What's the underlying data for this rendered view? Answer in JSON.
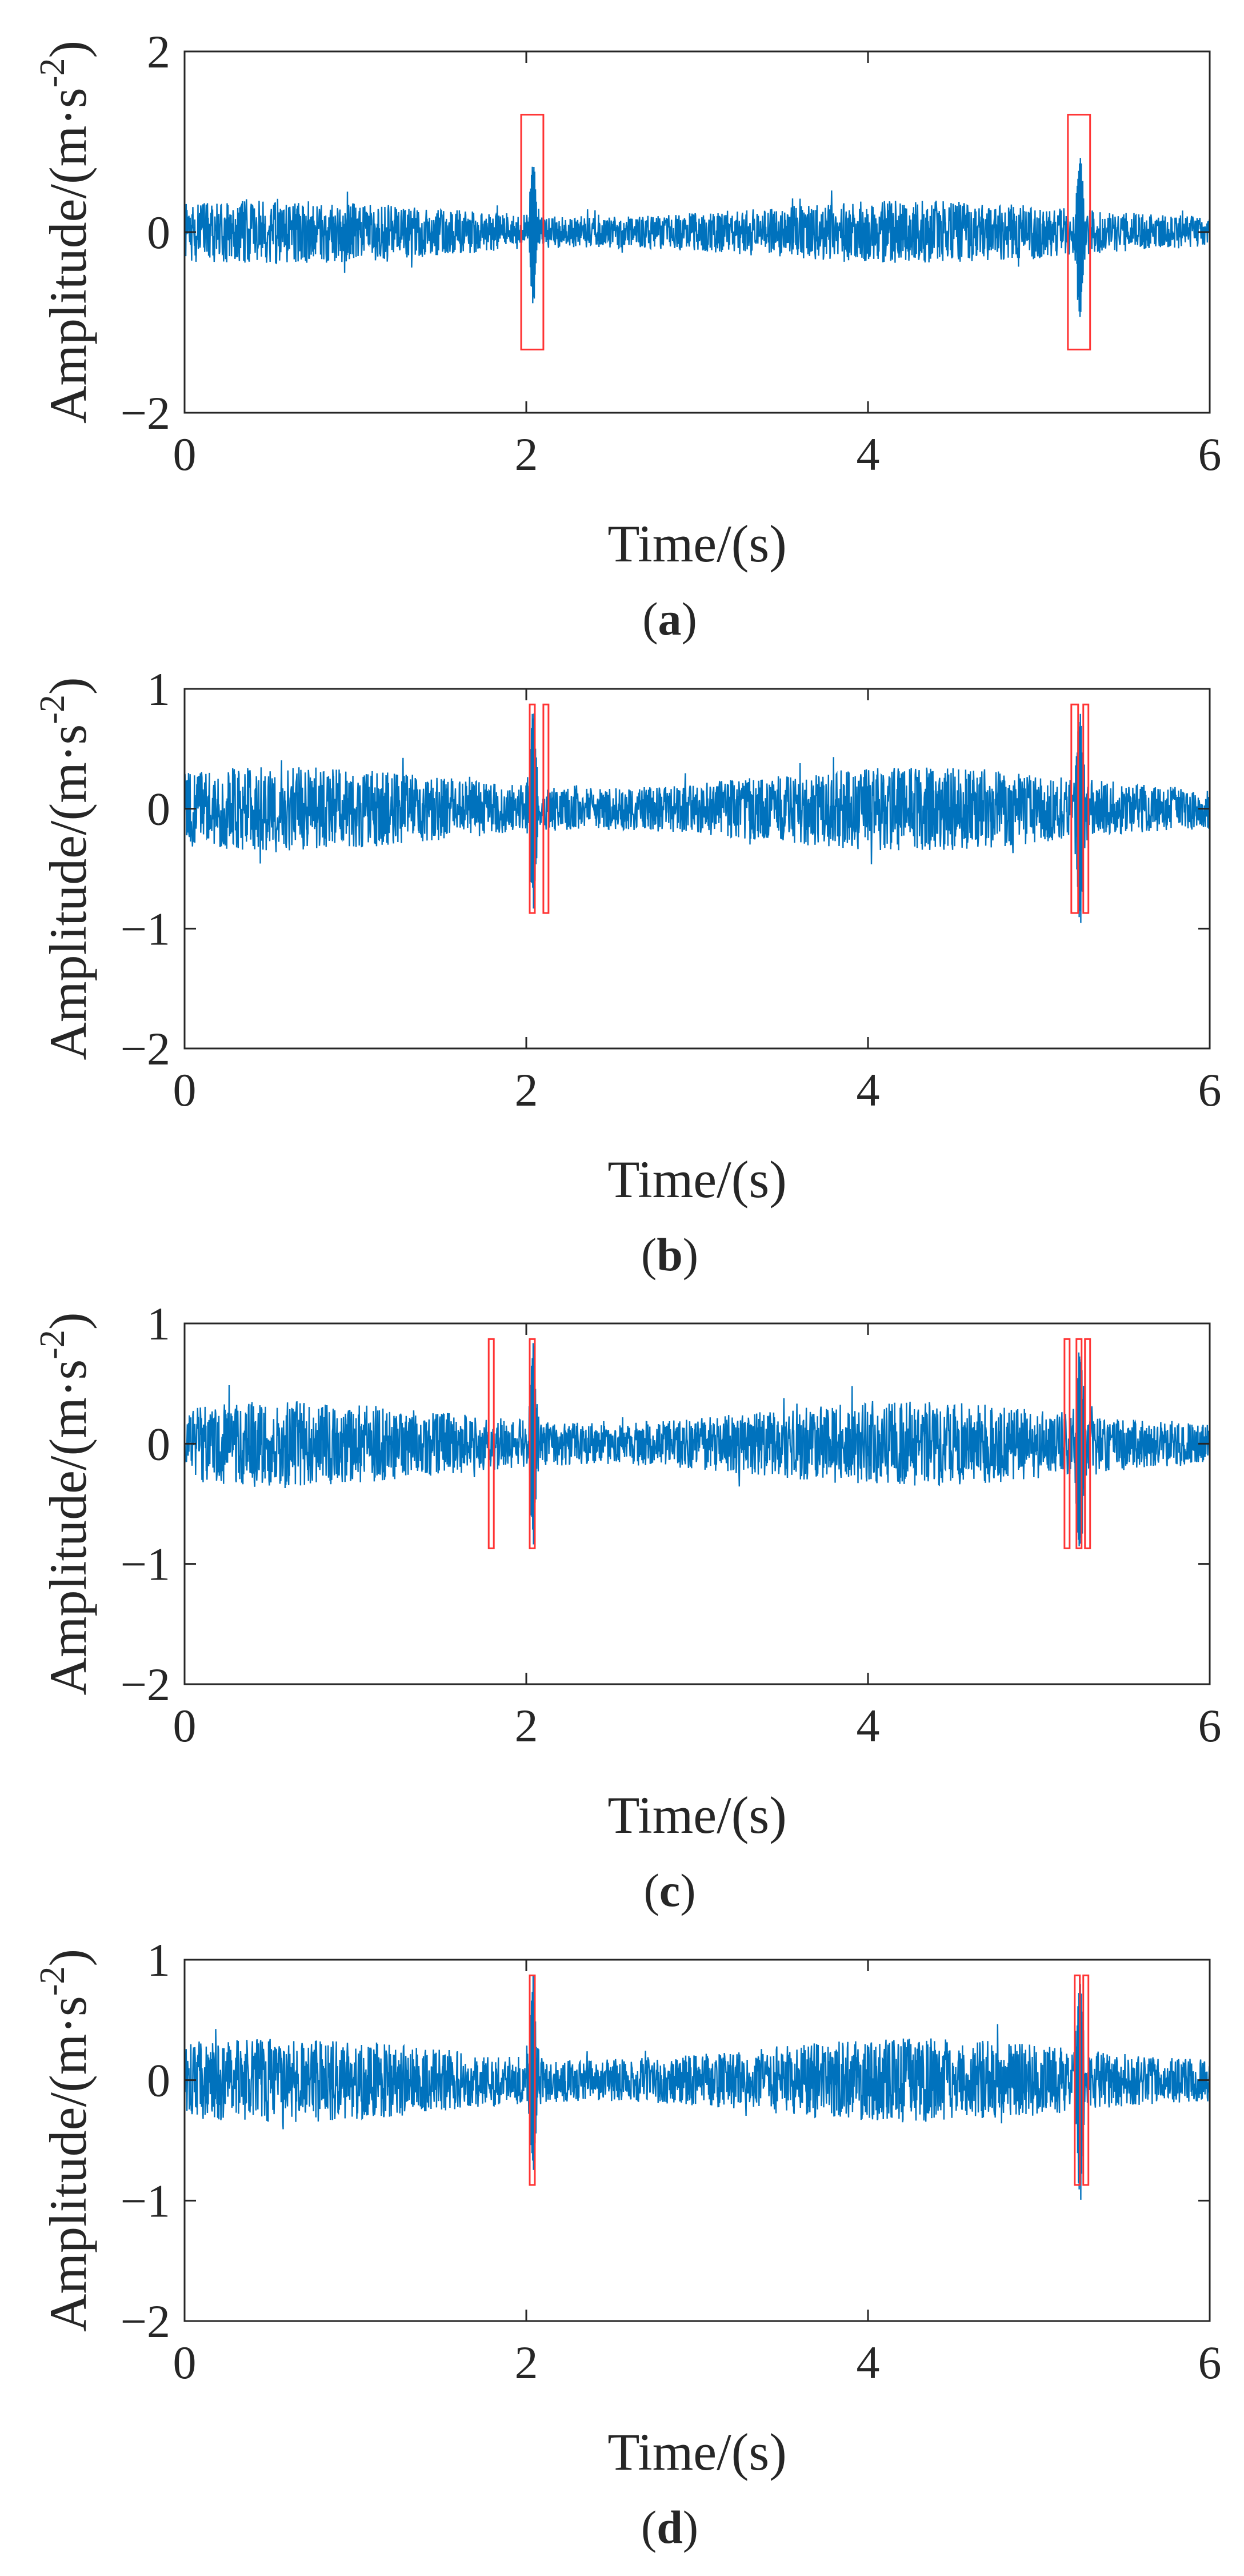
{
  "figure": {
    "signal_color": "#0072bd",
    "box_color": "#ff3333",
    "axis_color": "#262626"
  },
  "chart_data": [
    {
      "type": "line",
      "panel_label": "a",
      "xlabel": "Time/(s)",
      "ylabel_prefix": "Amplitude/(m·s",
      "ylabel_exponent": "-2",
      "ylabel_suffix": ")",
      "xlim": [
        0,
        6
      ],
      "ylim": [
        -2,
        2
      ],
      "xticks": [
        0,
        2,
        4,
        6
      ],
      "yticks": [
        -2,
        0,
        2
      ],
      "x_tick_labels": [
        "0",
        "2",
        "4",
        "6"
      ],
      "y_tick_labels": [
        "−2",
        "0",
        "2"
      ],
      "grid": false,
      "series": [
        {
          "noise_amplitude": 0.35,
          "transients": [
            {
              "t": 2.04,
              "peak": 0.88,
              "trough": -0.85
            },
            {
              "t": 5.24,
              "peak": 0.92,
              "trough": -1.05
            }
          ]
        }
      ],
      "boxes": [
        {
          "x0": 1.97,
          "x1": 2.1,
          "y0": -1.3,
          "y1": 1.3
        },
        {
          "x0": 5.17,
          "x1": 5.3,
          "y0": -1.3,
          "y1": 1.3
        }
      ]
    },
    {
      "type": "line",
      "panel_label": "b",
      "xlabel": "Time/(s)",
      "ylabel_prefix": "Amplitude/(m·s",
      "ylabel_exponent": "-2",
      "ylabel_suffix": ")",
      "xlim": [
        0,
        6
      ],
      "ylim": [
        -2,
        1
      ],
      "xticks": [
        0,
        2,
        4,
        6
      ],
      "yticks": [
        -2,
        -1,
        0,
        1
      ],
      "x_tick_labels": [
        "0",
        "2",
        "4",
        "6"
      ],
      "y_tick_labels": [
        "−2",
        "−1",
        "0",
        "1"
      ],
      "grid": false,
      "series": [
        {
          "noise_amplitude": 0.35,
          "transients": [
            {
              "t": 2.04,
              "peak": 0.88,
              "trough": -0.85
            },
            {
              "t": 5.24,
              "peak": 0.92,
              "trough": -1.08
            }
          ]
        }
      ],
      "boxes": [
        {
          "x0": 2.02,
          "x1": 2.05,
          "y0": -0.87,
          "y1": 0.87
        },
        {
          "x0": 2.1,
          "x1": 2.13,
          "y0": -0.87,
          "y1": 0.87
        },
        {
          "x0": 5.19,
          "x1": 5.23,
          "y0": -0.87,
          "y1": 0.87
        },
        {
          "x0": 5.26,
          "x1": 5.29,
          "y0": -0.87,
          "y1": 0.87
        }
      ]
    },
    {
      "type": "line",
      "panel_label": "c",
      "xlabel": "Time/(s)",
      "ylabel_prefix": "Amplitude/(m·s",
      "ylabel_exponent": "-2",
      "ylabel_suffix": ")",
      "xlim": [
        0,
        6
      ],
      "ylim": [
        -2,
        1
      ],
      "xticks": [
        0,
        2,
        4,
        6
      ],
      "yticks": [
        -2,
        -1,
        0,
        1
      ],
      "x_tick_labels": [
        "0",
        "2",
        "4",
        "6"
      ],
      "y_tick_labels": [
        "−2",
        "−1",
        "0",
        "1"
      ],
      "grid": false,
      "series": [
        {
          "noise_amplitude": 0.35,
          "transients": [
            {
              "t": 2.04,
              "peak": 0.88,
              "trough": -0.85
            },
            {
              "t": 5.24,
              "peak": 0.92,
              "trough": -1.08
            }
          ]
        }
      ],
      "boxes": [
        {
          "x0": 1.78,
          "x1": 1.81,
          "y0": -0.87,
          "y1": 0.87
        },
        {
          "x0": 2.02,
          "x1": 2.05,
          "y0": -0.87,
          "y1": 0.87
        },
        {
          "x0": 5.15,
          "x1": 5.18,
          "y0": -0.87,
          "y1": 0.87
        },
        {
          "x0": 5.22,
          "x1": 5.25,
          "y0": -0.87,
          "y1": 0.87
        },
        {
          "x0": 5.27,
          "x1": 5.3,
          "y0": -0.87,
          "y1": 0.87
        }
      ]
    },
    {
      "type": "line",
      "panel_label": "d",
      "xlabel": "Time/(s)",
      "ylabel_prefix": "Amplitude/(m·s",
      "ylabel_exponent": "-2",
      "ylabel_suffix": ")",
      "xlim": [
        0,
        6
      ],
      "ylim": [
        -2,
        1
      ],
      "xticks": [
        0,
        2,
        4,
        6
      ],
      "yticks": [
        -2,
        -1,
        0,
        1
      ],
      "x_tick_labels": [
        "0",
        "2",
        "4",
        "6"
      ],
      "y_tick_labels": [
        "−2",
        "−1",
        "0",
        "1"
      ],
      "grid": false,
      "series": [
        {
          "noise_amplitude": 0.35,
          "transients": [
            {
              "t": 2.04,
              "peak": 0.88,
              "trough": -0.85
            },
            {
              "t": 5.24,
              "peak": 0.92,
              "trough": -1.08
            }
          ]
        }
      ],
      "boxes": [
        {
          "x0": 2.02,
          "x1": 2.05,
          "y0": -0.87,
          "y1": 0.87
        },
        {
          "x0": 5.21,
          "x1": 5.24,
          "y0": -0.87,
          "y1": 0.87
        },
        {
          "x0": 5.26,
          "x1": 5.29,
          "y0": -0.87,
          "y1": 0.87
        }
      ]
    }
  ]
}
